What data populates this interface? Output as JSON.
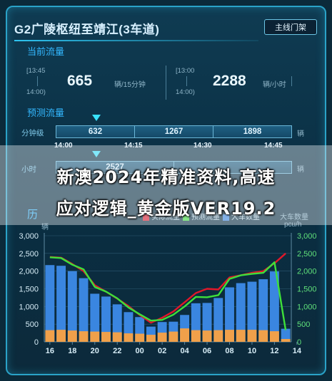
{
  "header": {
    "title": "G2广陵枢纽至靖江(3车道)",
    "button_label": "主线门架"
  },
  "current_flow": {
    "section_label": "当前流量",
    "left": {
      "time_from": "[13:45",
      "time_to": "14:00)",
      "value": "665",
      "unit": "辆/15分钟"
    },
    "right": {
      "time_from": "[13:00",
      "time_to": "14:00)",
      "value": "2288",
      "unit": "辆/小时"
    }
  },
  "forecast": {
    "section_label": "预测流量",
    "minute_row": {
      "label": "分钟级",
      "cells": [
        "632",
        "1267",
        "1898"
      ],
      "unit": "辆"
    },
    "times": [
      "14:00",
      "14:15",
      "14:30",
      "14:45"
    ],
    "hour_row": {
      "label": "小时",
      "cells": [
        "2527",
        ""
      ],
      "unit": "辆"
    }
  },
  "headline": {
    "line1": "新澳2024年精准资料,高速",
    "line2": "应对逻辑_黄金版VER19.2"
  },
  "history": {
    "section_label": "历",
    "left_unit": "辆",
    "right_label": "大车数量",
    "right_unit": "pcu/h",
    "legend": [
      "实际流量",
      "预测流量",
      "大车数量"
    ]
  },
  "colors": {
    "accent": "#33b8ff",
    "bar_blue": "#3a86e0",
    "bar_orange": "#f0a04a",
    "line_red": "#e0182a",
    "line_green": "#3ee03a",
    "axis_right": "#5fe07a"
  },
  "chart_data": {
    "type": "bar",
    "x_tick_labels": [
      "16",
      "18",
      "20",
      "22",
      "00",
      "02",
      "04",
      "06",
      "08",
      "10",
      "12",
      "14"
    ],
    "left_axis_ticks": [
      "3,000",
      "2,500",
      "2,000",
      "1,500",
      "1,000",
      "500",
      "0"
    ],
    "right_axis_ticks": [
      "3,000",
      "2,500",
      "2,000",
      "1,500",
      "1,000",
      "500",
      "0"
    ],
    "ylim": [
      0,
      3000
    ],
    "series": [
      {
        "name": "",
        "type": "bar",
        "values": [
          2170,
          2150,
          2000,
          1800,
          1360,
          1280,
          1060,
          840,
          700,
          430,
          560,
          570,
          760,
          1090,
          1100,
          1240,
          1540,
          1660,
          1700,
          1770,
          1990,
          370
        ]
      },
      {
        "name": "",
        "type": "bar",
        "values": [
          330,
          340,
          320,
          300,
          290,
          280,
          270,
          240,
          230,
          200,
          260,
          290,
          380,
          330,
          320,
          330,
          340,
          340,
          340,
          330,
          300,
          80
        ]
      },
      {
        "name": "",
        "type": "line",
        "values": [
          2400,
          2380,
          2200,
          2000,
          1600,
          1420,
          1220,
          1010,
          760,
          540,
          680,
          860,
          1120,
          1380,
          1500,
          1480,
          1820,
          1880,
          1950,
          2000,
          2220,
          2500
        ]
      },
      {
        "name": "",
        "type": "line",
        "values": [
          2390,
          2370,
          2180,
          2050,
          1550,
          1420,
          1230,
          970,
          780,
          600,
          620,
          770,
          1000,
          1270,
          1260,
          1320,
          1780,
          1880,
          1920,
          1950,
          2250,
          330
        ]
      }
    ]
  }
}
